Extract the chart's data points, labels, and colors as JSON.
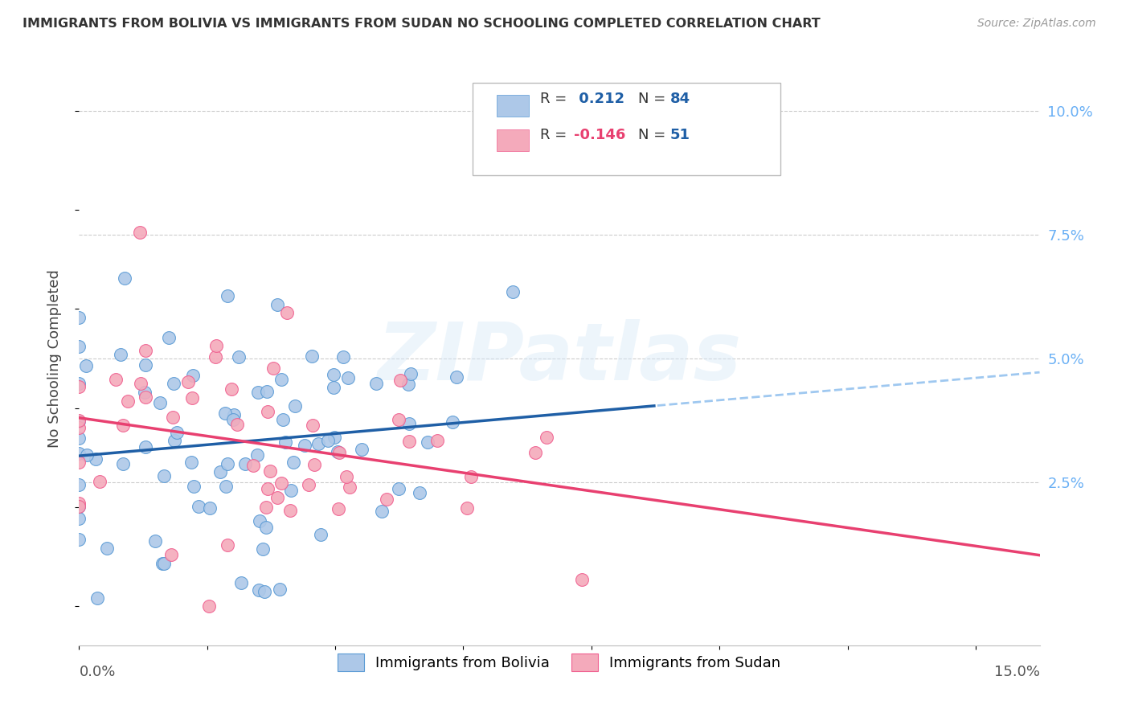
{
  "title": "IMMIGRANTS FROM BOLIVIA VS IMMIGRANTS FROM SUDAN NO SCHOOLING COMPLETED CORRELATION CHART",
  "source": "Source: ZipAtlas.com",
  "ylabel": "No Schooling Completed",
  "xlim": [
    0.0,
    0.15
  ],
  "ylim": [
    -0.008,
    0.108
  ],
  "bolivia_color": "#adc8e8",
  "sudan_color": "#f4aabb",
  "bolivia_edge_color": "#5b9bd5",
  "sudan_edge_color": "#f06090",
  "bolivia_line_color": "#1f5fa6",
  "sudan_line_color": "#e84070",
  "dash_color": "#9fc8f0",
  "watermark": "ZIPatlas",
  "r_color_blue": "#1f5fa6",
  "r_color_pink": "#e84070",
  "n_color": "#1f5fa6",
  "axis_label_color": "#6ab0f5",
  "right_ytick_vals": [
    0.1,
    0.075,
    0.05,
    0.025
  ],
  "right_ytick_labels": [
    "10.0%",
    "7.5%",
    "5.0%",
    "2.5%"
  ],
  "bolivia_r": 0.212,
  "bolivia_n": 84,
  "sudan_r": -0.146,
  "sudan_n": 51
}
